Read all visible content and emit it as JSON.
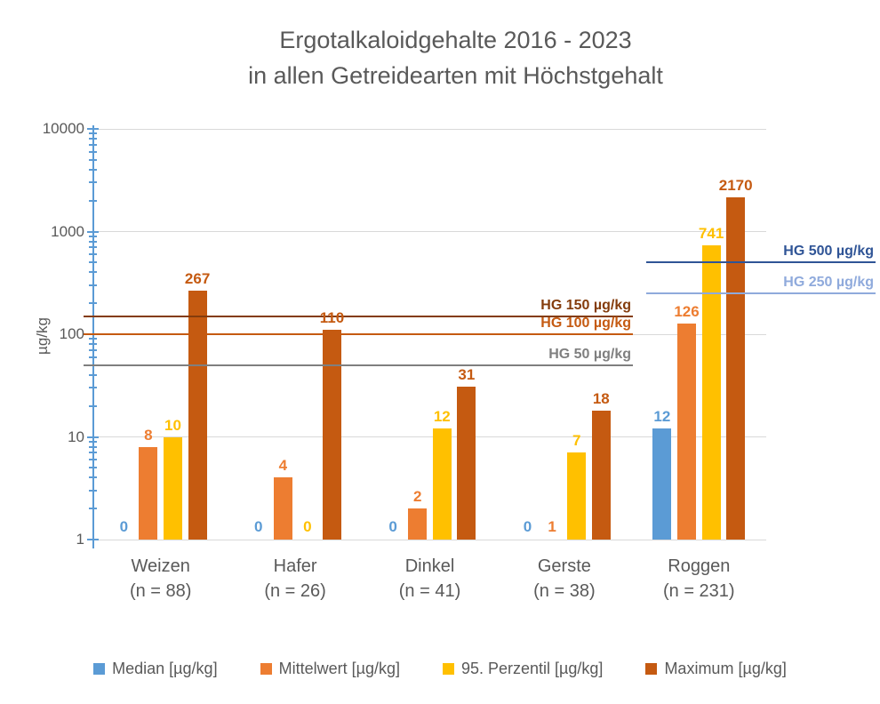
{
  "title": {
    "line1": "Ergotalkaloidgehalte 2016 - 2023",
    "line2": "in allen Getreidearten mit Höchstgehalt"
  },
  "y_axis": {
    "title": "µg/kg",
    "tick_labels": [
      "10000",
      "1000",
      "100",
      "10",
      "1"
    ],
    "scale": "log",
    "min": 1,
    "max": 10000
  },
  "chart_data": {
    "type": "bar",
    "scale": "log-y",
    "title": "Ergotalkaloidgehalte 2016 - 2023 in allen Getreidearten mit Höchstgehalt",
    "ylabel": "µg/kg",
    "ylim": [
      1,
      10000
    ],
    "grid": "horizontal decade gridlines",
    "legend_position": "bottom",
    "categories": [
      "Weizen",
      "Hafer",
      "Dinkel",
      "Gerste",
      "Roggen"
    ],
    "category_sublabels": [
      "(n = 88)",
      "(n = 26)",
      "(n = 41)",
      "(n = 38)",
      "(n = 231)"
    ],
    "series": [
      {
        "name": "Median [µg/kg]",
        "key": "median",
        "color": "#5B9BD5",
        "values": [
          0,
          0,
          0,
          0,
          12
        ]
      },
      {
        "name": "Mittelwert [µg/kg]",
        "key": "mittelwert",
        "color": "#ED7D31",
        "values": [
          8,
          4,
          2,
          1,
          126
        ]
      },
      {
        "name": "95. Perzentil [µg/kg]",
        "key": "perzentil",
        "color": "#FFC000",
        "values": [
          10,
          0,
          12,
          7,
          741
        ]
      },
      {
        "name": "Maximum [µg/kg]",
        "key": "maximum",
        "color": "#C55A11",
        "values": [
          267,
          110,
          31,
          18,
          2170
        ]
      }
    ],
    "reference_lines": [
      {
        "label": "HG 150 µg/kg",
        "value": 150,
        "color": "#843C0C",
        "extent": "plot"
      },
      {
        "label": "HG 100 µg/kg",
        "value": 100,
        "color": "#C55A11",
        "extent": "plot"
      },
      {
        "label": "HG 50 µg/kg",
        "value": 50,
        "color": "#7F7F7F",
        "extent": "plot"
      },
      {
        "label": "HG 500 µg/kg",
        "value": 500,
        "color": "#2F5496",
        "extent": "right"
      },
      {
        "label": "HG 250 µg/kg",
        "value": 250,
        "color": "#8FAADC",
        "extent": "right"
      }
    ]
  },
  "colors": {
    "text": "#595959",
    "gridline": "#D9D9D9",
    "axis": "#5B9BD5"
  }
}
